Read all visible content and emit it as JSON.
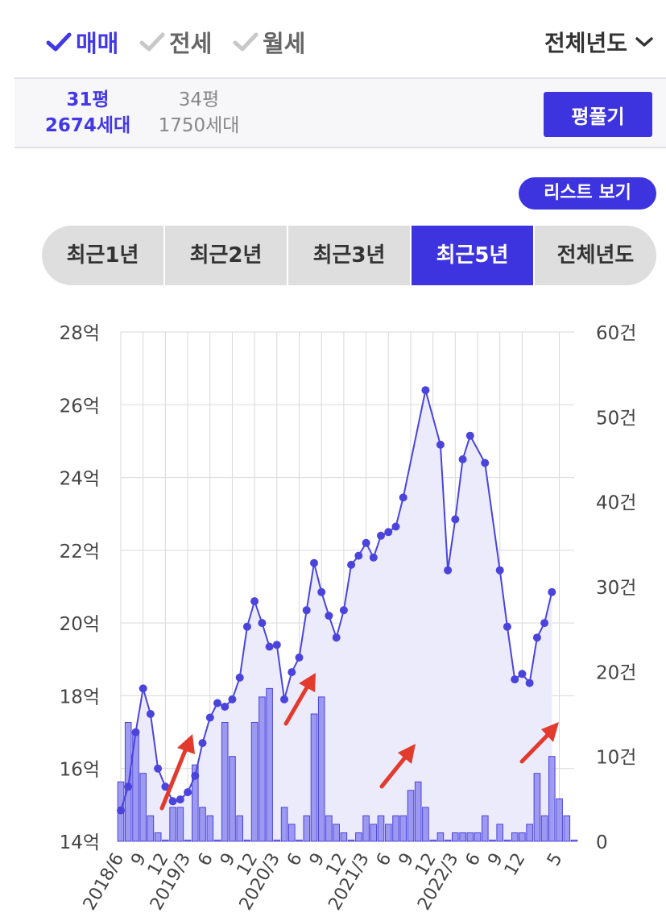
{
  "trade_types": [
    {
      "label": "매매",
      "active": true
    },
    {
      "label": "전세",
      "active": false
    },
    {
      "label": "월세",
      "active": false
    }
  ],
  "year_select": {
    "label": "전체년도"
  },
  "area_options": [
    {
      "pyeong": "31평",
      "households": "2674세대",
      "active": true
    },
    {
      "pyeong": "34평",
      "households": "1750세대",
      "active": false
    }
  ],
  "pyeong_button": "평풀기",
  "list_button": "리스트 보기",
  "period_tabs": [
    {
      "label": "최근1년",
      "active": false
    },
    {
      "label": "최근2년",
      "active": false
    },
    {
      "label": "최근3년",
      "active": false
    },
    {
      "label": "최근5년",
      "active": true
    },
    {
      "label": "전체년도",
      "active": false
    }
  ],
  "colors": {
    "accent": "#3d34e0",
    "line": "#4a44dd",
    "bar_fill": "#8f8bef",
    "area_fill": "#ecebfb",
    "arrow": "#e23b2e"
  },
  "chart_data": {
    "type": "bar+line",
    "x_tick_labels": [
      "2018/6",
      "9",
      "12",
      "2019/3",
      "6",
      "9",
      "12",
      "2020/3",
      "6",
      "9",
      "12",
      "2021/3",
      "6",
      "9",
      "12",
      "2022/3",
      "6",
      "9",
      "12",
      "5"
    ],
    "x_tick_month_index": [
      0,
      3,
      6,
      9,
      12,
      15,
      18,
      21,
      24,
      27,
      30,
      33,
      36,
      39,
      42,
      45,
      48,
      51,
      54,
      59
    ],
    "y_left": {
      "ticks": [
        "14억",
        "16억",
        "18억",
        "20억",
        "22억",
        "24억",
        "26억",
        "28억"
      ],
      "range": [
        14,
        28
      ],
      "unit": "억"
    },
    "y_right": {
      "ticks": [
        "0",
        "10건",
        "20건",
        "30건",
        "40건",
        "50건",
        "60건"
      ],
      "range": [
        0,
        60
      ],
      "unit": "건"
    },
    "series": [
      {
        "kind": "line",
        "axis": "left",
        "points": [
          [
            0,
            14.85
          ],
          [
            1,
            15.5
          ],
          [
            2,
            17.0
          ],
          [
            3,
            18.2
          ],
          [
            4,
            17.5
          ],
          [
            5,
            16.0
          ],
          [
            6,
            15.5
          ],
          [
            7,
            15.1
          ],
          [
            8,
            15.15
          ],
          [
            9,
            15.35
          ],
          [
            10,
            15.8
          ],
          [
            11,
            16.7
          ],
          [
            12,
            17.4
          ],
          [
            13,
            17.8
          ],
          [
            14,
            17.7
          ],
          [
            15,
            17.9
          ],
          [
            16,
            18.5
          ],
          [
            17,
            19.9
          ],
          [
            18,
            20.6
          ],
          [
            19,
            20.0
          ],
          [
            20,
            19.35
          ],
          [
            21,
            19.4
          ],
          [
            22,
            17.9
          ],
          [
            23,
            18.65
          ],
          [
            24,
            19.05
          ],
          [
            25,
            20.35
          ],
          [
            26,
            21.65
          ],
          [
            27,
            20.85
          ],
          [
            28,
            20.2
          ],
          [
            29,
            19.6
          ],
          [
            30,
            20.35
          ],
          [
            31,
            21.6
          ],
          [
            32,
            21.85
          ],
          [
            33,
            22.2
          ],
          [
            34,
            21.8
          ],
          [
            35,
            22.4
          ],
          [
            36,
            22.5
          ],
          [
            37,
            22.65
          ],
          [
            38,
            23.45
          ],
          [
            41,
            26.4
          ],
          [
            43,
            24.9
          ],
          [
            44,
            21.45
          ],
          [
            45,
            22.85
          ],
          [
            46,
            24.5
          ],
          [
            47,
            25.15
          ],
          [
            49,
            24.4
          ],
          [
            51,
            21.45
          ],
          [
            52,
            19.9
          ],
          [
            53,
            18.45
          ],
          [
            54,
            18.6
          ],
          [
            55,
            18.35
          ],
          [
            56,
            19.6
          ],
          [
            57,
            20.0
          ],
          [
            58,
            20.85
          ]
        ]
      },
      {
        "kind": "bar",
        "axis": "right",
        "values": [
          7,
          14,
          13,
          8,
          3,
          1,
          0,
          4,
          4,
          0,
          9,
          4,
          3,
          0,
          14,
          10,
          3,
          0,
          14,
          17,
          18,
          0,
          4,
          2,
          0,
          3,
          15,
          17,
          3,
          2,
          1,
          0,
          1,
          3,
          2,
          3,
          2,
          3,
          3,
          6,
          7,
          4,
          0,
          1,
          0,
          1,
          1,
          1,
          1,
          3,
          0,
          2,
          0,
          1,
          1,
          2,
          8,
          3,
          10,
          5,
          3,
          0
        ]
      }
    ],
    "grid": true,
    "legend": "none"
  }
}
